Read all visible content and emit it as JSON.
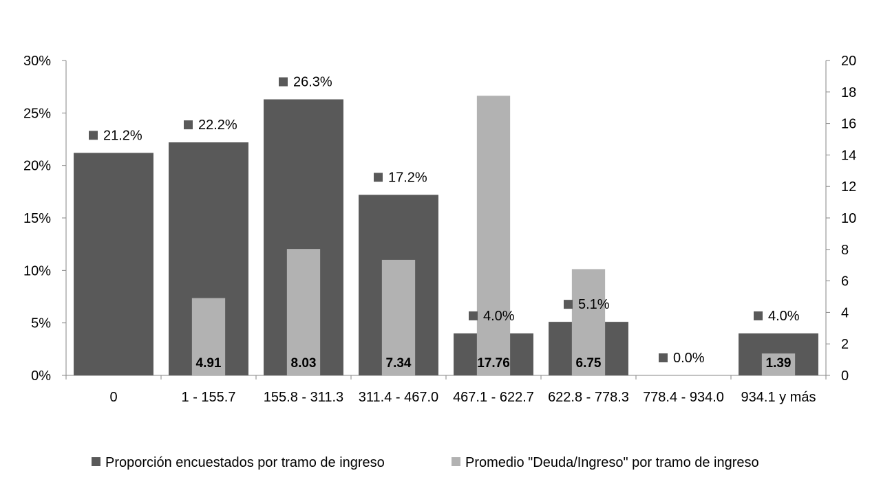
{
  "chart_data": {
    "type": "bar",
    "categories": [
      "0",
      "1 - 155.7",
      "155.8 - 311.3",
      "311.4 - 467.0",
      "467.1 - 622.7",
      "622.8 - 778.3",
      "778.4 - 934.0",
      "934.1 y más"
    ],
    "series": [
      {
        "name": "Proporción encuestados por tramo de ingreso",
        "axis": "left",
        "values": [
          21.2,
          22.2,
          26.3,
          17.2,
          4.0,
          5.1,
          0.0,
          4.0
        ],
        "labels": [
          "21.2%",
          "22.2%",
          "26.3%",
          "17.2%",
          "4.0%",
          "5.1%",
          "0.0%",
          "4.0%"
        ],
        "color": "#595959"
      },
      {
        "name": "Promedio \"Deuda/Ingreso\" por tramo de ingreso",
        "axis": "right",
        "values": [
          null,
          4.91,
          8.03,
          7.34,
          17.76,
          6.75,
          null,
          1.39
        ],
        "labels": [
          "",
          "4.91",
          "8.03",
          "7.34",
          "17.76",
          "6.75",
          "",
          "1.39"
        ],
        "color": "#b2b2b2"
      }
    ],
    "y_left": {
      "ylim": [
        0,
        30
      ],
      "ticks": [
        "0%",
        "5%",
        "10%",
        "15%",
        "20%",
        "25%",
        "30%"
      ]
    },
    "y_right": {
      "ylim": [
        0,
        20
      ],
      "ticks": [
        "0",
        "2",
        "4",
        "6",
        "8",
        "10",
        "12",
        "14",
        "16",
        "18",
        "20"
      ]
    },
    "grid": false,
    "legend": "bottom"
  }
}
